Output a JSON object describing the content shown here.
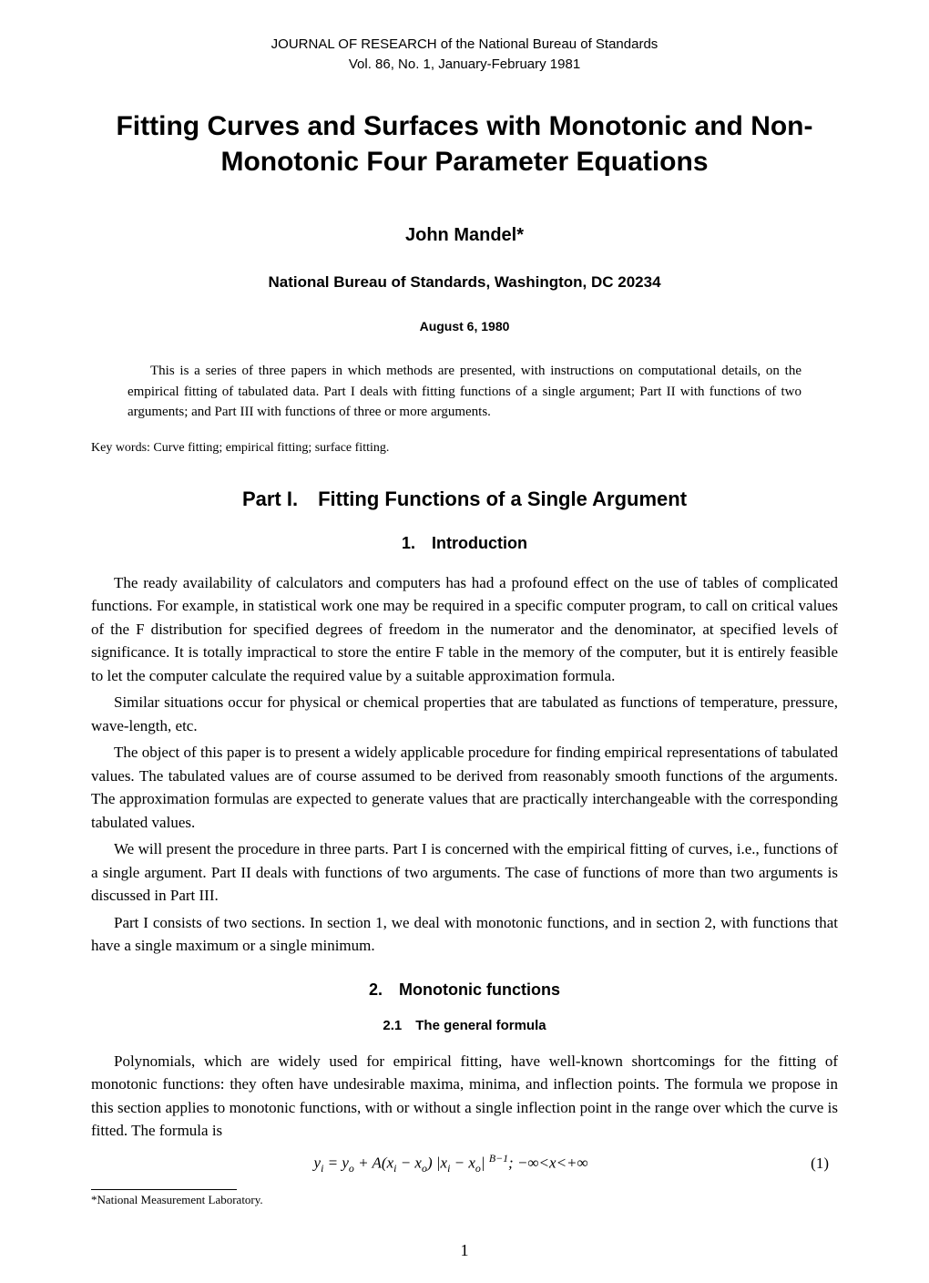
{
  "journal": {
    "name": "JOURNAL OF RESEARCH of the National Bureau of Standards",
    "volume": "Vol. 86, No. 1, January-February 1981"
  },
  "title": "Fitting Curves and Surfaces with Monotonic and Non-Monotonic Four Parameter Equations",
  "author": "John Mandel*",
  "affiliation": "National Bureau of Standards, Washington, DC 20234",
  "date": "August 6, 1980",
  "abstract": "This is a series of three papers in which methods are presented, with instructions on computational details, on the empirical fitting of tabulated data. Part I deals with fitting functions of a single argument; Part II with functions of two arguments; and Part III with functions of three or more arguments.",
  "keywords": "Key words: Curve fitting; empirical fitting; surface fitting.",
  "part_heading": "Part I. Fitting Functions of a Single Argument",
  "section1": {
    "heading": "1. Introduction",
    "para1": "The ready availability of calculators and computers has had a profound effect on the use of tables of complicated functions. For example, in statistical work one may be required in a specific computer program, to call on critical values of the F distribution for specified degrees of freedom in the numerator and the denominator, at specified levels of significance. It is totally impractical to store the entire F table in the memory of the computer, but it is entirely feasible to let the computer calculate the required value by a suitable approximation formula.",
    "para2": "Similar situations occur for physical or chemical properties that are tabulated as functions of temperature, pressure, wave-length, etc.",
    "para3": "The object of this paper is to present a widely applicable procedure for finding empirical representations of tabulated values. The tabulated values are of course assumed to be derived from reasonably smooth functions of the arguments. The approximation formulas are expected to generate values that are practically interchangeable with the corresponding tabulated values.",
    "para4": "We will present the procedure in three parts. Part I is concerned with the empirical fitting of curves, i.e., functions of a single argument. Part II deals with functions of two arguments. The case of functions of more than two arguments is discussed in Part III.",
    "para5": "Part I consists of two sections. In section 1, we deal with monotonic functions, and in section 2, with functions that have a single maximum or a single minimum."
  },
  "section2": {
    "heading": "2. Monotonic functions",
    "subheading": "2.1 The general formula",
    "para1": "Polynomials, which are widely used for empirical fitting, have well-known shortcomings for the fitting of monotonic functions: they often have undesirable maxima, minima, and inflection points. The formula we propose in this section applies to monotonic functions, with or without a single inflection point in the range over which the curve is fitted. The formula is",
    "equation_number": "(1)"
  },
  "footnote": "*National Measurement Laboratory.",
  "page_number": "1"
}
